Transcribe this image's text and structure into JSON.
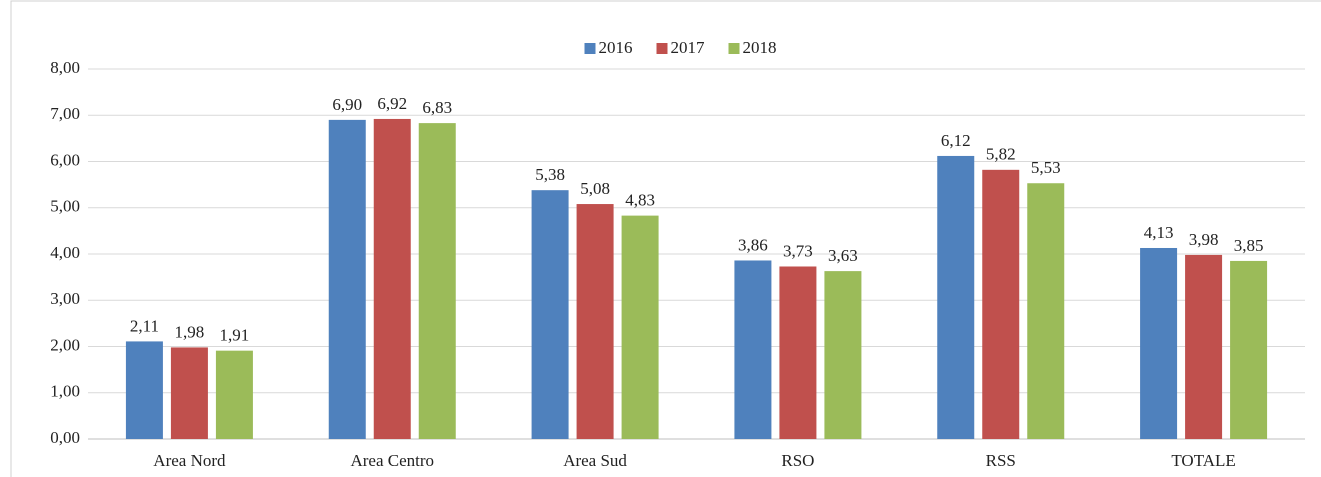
{
  "chart_data": {
    "type": "bar",
    "categories": [
      "Area Nord",
      "Area Centro",
      "Area Sud",
      "RSO",
      "RSS",
      "TOTALE"
    ],
    "series": [
      {
        "name": "2016",
        "color": "#4f81bd",
        "values": [
          2.11,
          6.9,
          5.38,
          3.86,
          6.12,
          4.13
        ],
        "value_labels": [
          "2,11",
          "6,90",
          "5,38",
          "3,86",
          "6,12",
          "4,13"
        ]
      },
      {
        "name": "2017",
        "color": "#c0504d",
        "values": [
          1.98,
          6.92,
          5.08,
          3.73,
          5.82,
          3.98
        ],
        "value_labels": [
          "1,98",
          "6,92",
          "5,08",
          "3,73",
          "5,82",
          "3,98"
        ]
      },
      {
        "name": "2018",
        "color": "#9bbb59",
        "values": [
          1.91,
          6.83,
          4.83,
          3.63,
          5.53,
          3.85
        ],
        "value_labels": [
          "1,91",
          "6,83",
          "4,83",
          "3,63",
          "5,53",
          "3,85"
        ]
      }
    ],
    "ylim": [
      0,
      8
    ],
    "yticks": [
      {
        "value": 0,
        "label": "0,00"
      },
      {
        "value": 1,
        "label": "1,00"
      },
      {
        "value": 2,
        "label": "2,00"
      },
      {
        "value": 3,
        "label": "3,00"
      },
      {
        "value": 4,
        "label": "4,00"
      },
      {
        "value": 5,
        "label": "5,00"
      },
      {
        "value": 6,
        "label": "6,00"
      },
      {
        "value": 7,
        "label": "7,00"
      },
      {
        "value": 8,
        "label": "8,00"
      }
    ],
    "grid": true,
    "legend": "top"
  }
}
